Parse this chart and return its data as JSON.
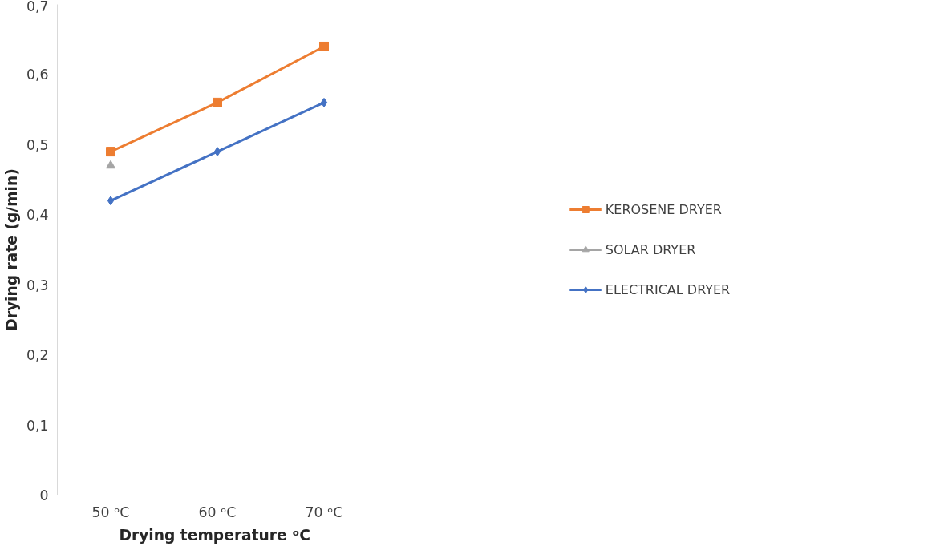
{
  "chart_data": {
    "type": "line",
    "xlabel": "Drying temperature  ᵒC",
    "ylabel": "Drying rate (g/min)",
    "categories": [
      "50 ᵒC",
      "60 ᵒC",
      "70 ᵒC"
    ],
    "series": [
      {
        "name": "KEROSENE DRYER",
        "color": "#ed7d31",
        "marker": "square",
        "values": [
          0.49,
          0.56,
          0.64
        ]
      },
      {
        "name": "SOLAR DRYER",
        "color": "#a5a5a5",
        "marker": "triangle",
        "values": [
          0.47,
          null,
          null
        ]
      },
      {
        "name": "ELECTRICAL DRYER",
        "color": "#4472c4",
        "marker": "diamond",
        "values": [
          0.42,
          0.49,
          0.56
        ]
      }
    ],
    "ylim": [
      0,
      0.7
    ],
    "yticks": [
      {
        "value": 0,
        "label": "0"
      },
      {
        "value": 0.1,
        "label": "0,1"
      },
      {
        "value": 0.2,
        "label": "0,2"
      },
      {
        "value": 0.3,
        "label": "0,3"
      },
      {
        "value": 0.4,
        "label": "0,4"
      },
      {
        "value": 0.5,
        "label": "0,5"
      },
      {
        "value": 0.6,
        "label": "0,6"
      },
      {
        "value": 0.7,
        "label": "0,7"
      }
    ],
    "grid": false,
    "legend": "right"
  }
}
